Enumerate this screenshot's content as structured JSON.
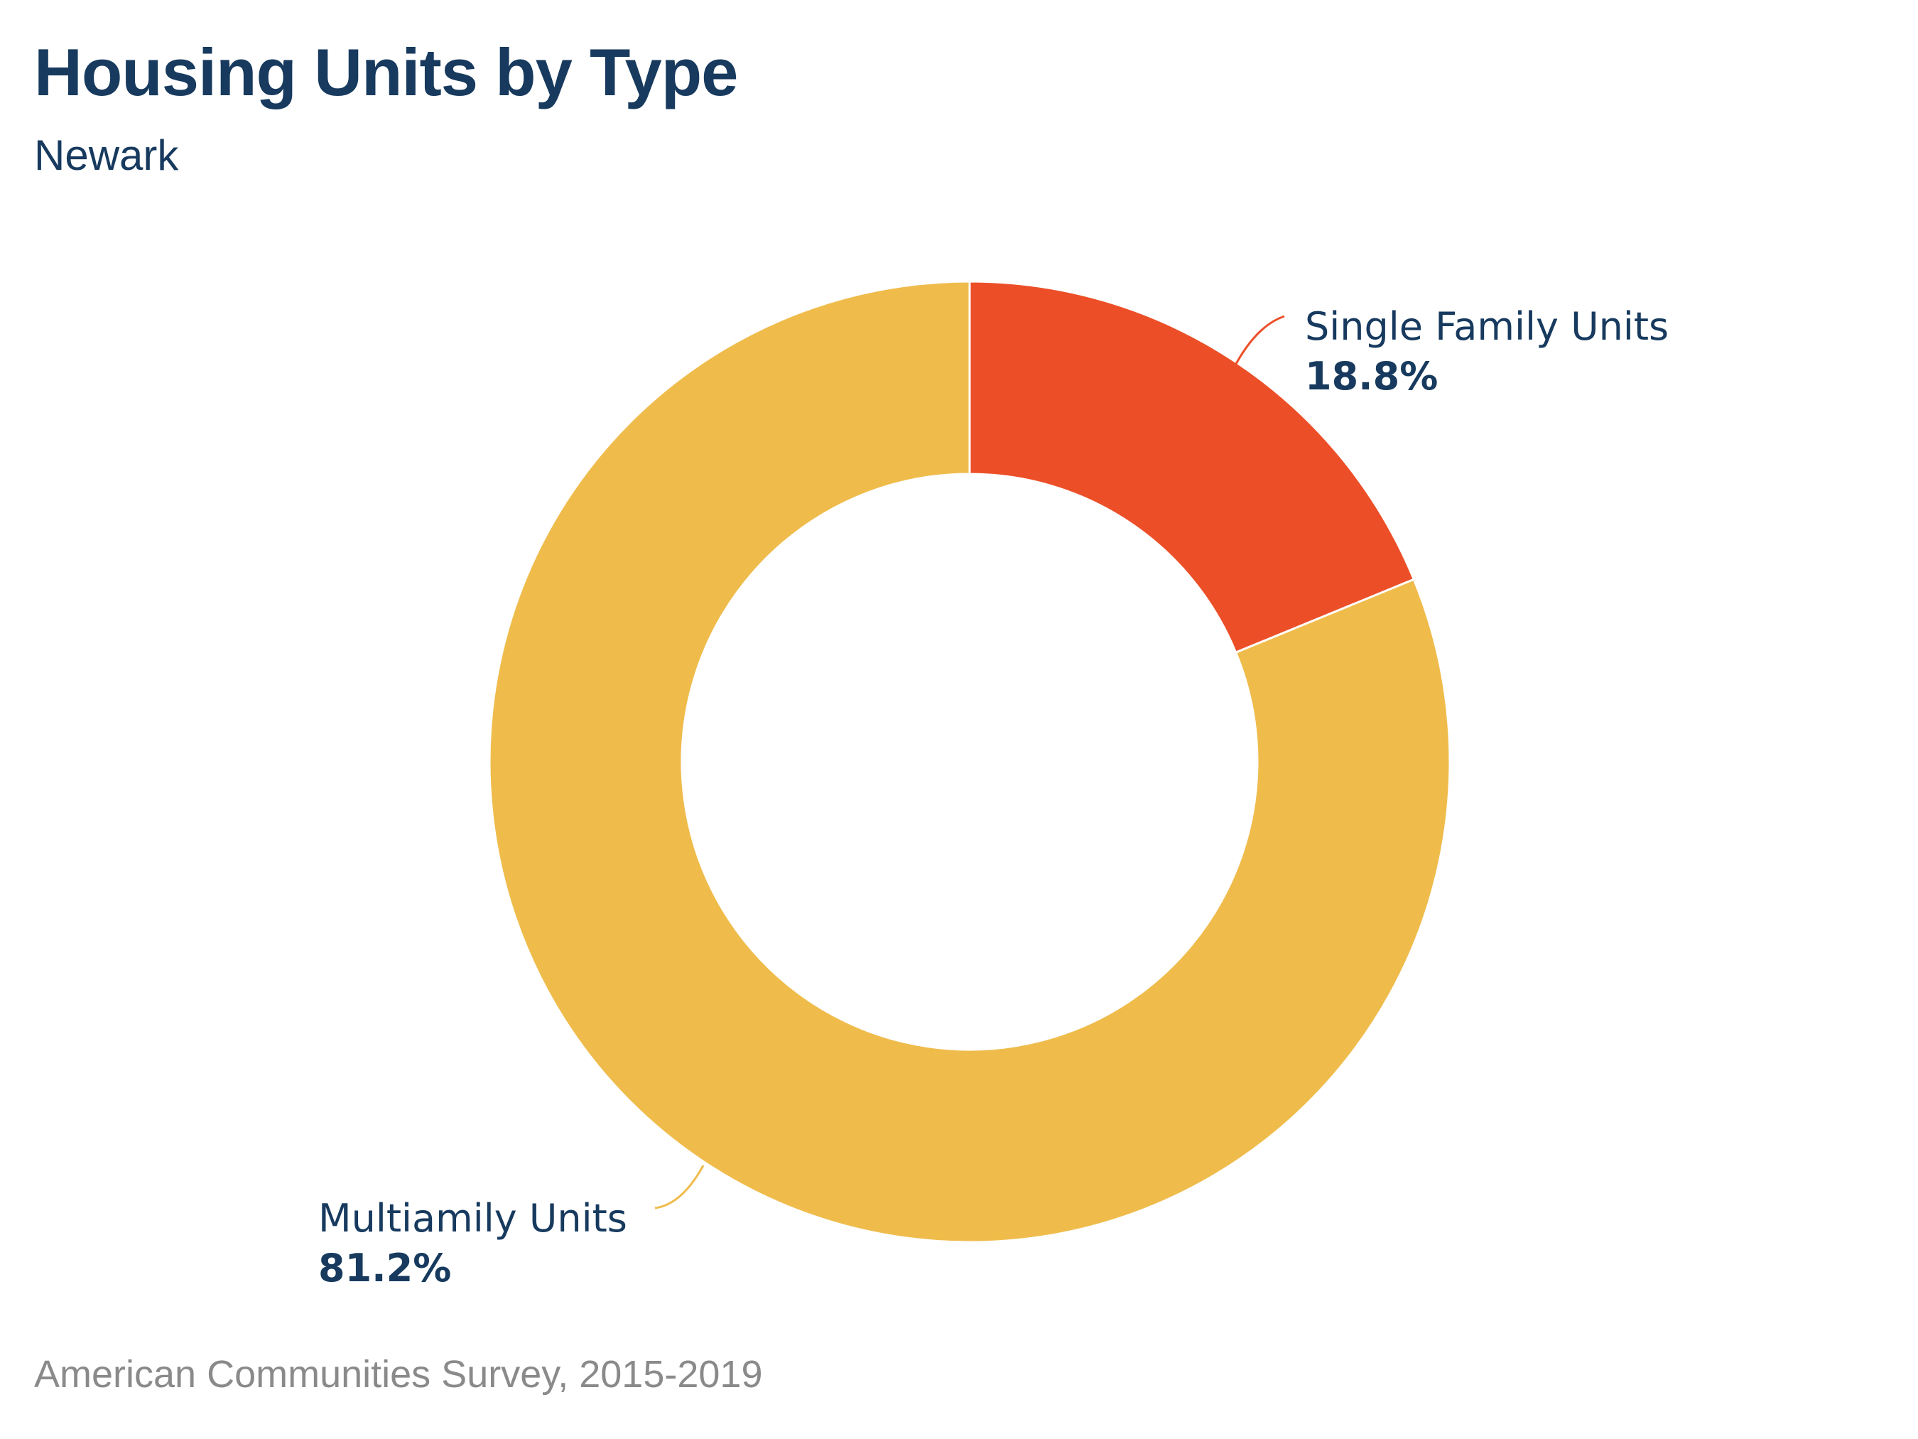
{
  "header": {
    "title": "Housing Units by Type",
    "subtitle": "Newark"
  },
  "chart_data": {
    "type": "pie",
    "variant": "donut",
    "title": "Housing Units by Type",
    "subtitle": "Newark",
    "legend": "none",
    "slices": [
      {
        "label": "Single Family Units",
        "value": 18.8,
        "value_label": "18.8%",
        "color": "#ec4f28"
      },
      {
        "label": "Multiamily Units",
        "value": 81.2,
        "value_label": "81.2%",
        "color": "#efbc4c"
      }
    ]
  },
  "footer": {
    "source": "American Communities Survey, 2015-2019"
  }
}
